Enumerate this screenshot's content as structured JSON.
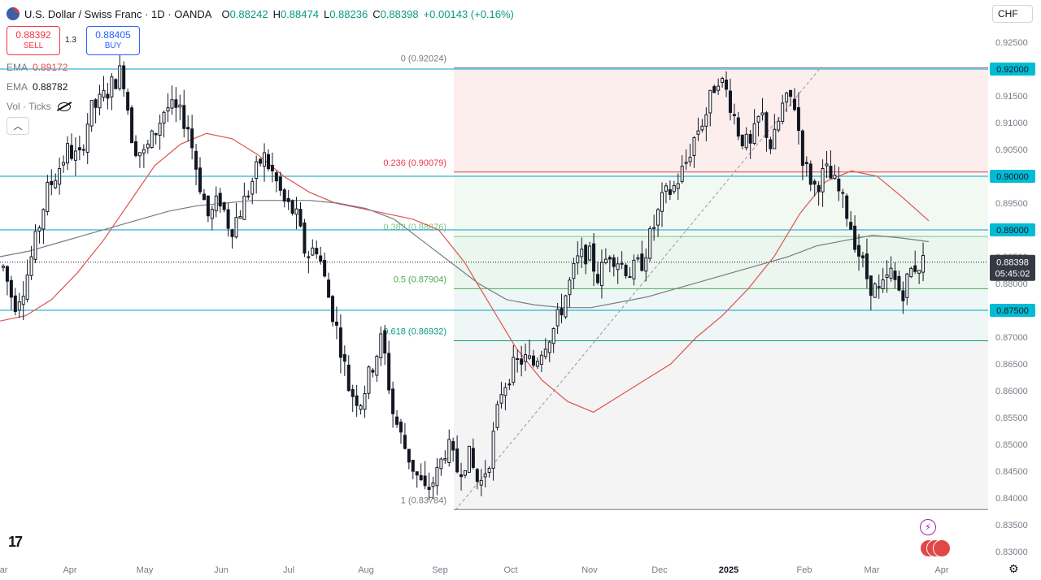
{
  "header": {
    "symbol": "U.S. Dollar / Swiss Franc · 1D · OANDA",
    "o_label": "O",
    "o_value": "0.88242",
    "h_label": "H",
    "h_value": "0.88474",
    "l_label": "L",
    "l_value": "0.88236",
    "c_label": "C",
    "c_value": "0.88398",
    "change": "+0.00143 (+0.16%)"
  },
  "trade": {
    "sell_price": "0.88392",
    "sell_label": "SELL",
    "spread": "1.3",
    "buy_price": "0.88405",
    "buy_label": "BUY"
  },
  "indicators": [
    {
      "name": "EMA",
      "value": "0.89172"
    },
    {
      "name": "EMA",
      "value": "0.88782"
    },
    {
      "name": "Vol · Ticks",
      "value": ""
    }
  ],
  "currency": "CHF",
  "colors": {
    "up": "#089981",
    "down": "#f23645",
    "candle": "#131722",
    "ema_fast": "#e0524f",
    "ema_slow": "#787b86",
    "level_line": "#00a2c8",
    "accent": "#2962ff"
  },
  "icons": [
    "tradingview-logo-icon",
    "lightning-icon",
    "flags-icon",
    "settings-icon",
    "eye-slash-icon",
    "chevron-up-icon"
  ],
  "chart_data": {
    "type": "candlestick",
    "yaxis_ticks": [
      "0.92500",
      "0.91500",
      "0.91000",
      "0.90500",
      "0.89500",
      "0.88500",
      "0.88000",
      "0.87000",
      "0.86500",
      "0.86000",
      "0.85500",
      "0.85000",
      "0.84500",
      "0.84000",
      "0.83500",
      "0.83000"
    ],
    "xaxis_ticks": [
      "Mar",
      "Apr",
      "May",
      "Jun",
      "Jul",
      "Aug",
      "Sep",
      "Oct",
      "Nov",
      "Dec",
      "2025",
      "Feb",
      "Mar",
      "Apr"
    ],
    "ylim": [
      0.83,
      0.925
    ],
    "horizontal_levels": [
      {
        "value": 0.92,
        "label": "0.92000"
      },
      {
        "value": 0.9,
        "label": "0.90000"
      },
      {
        "value": 0.89,
        "label": "0.89000"
      },
      {
        "value": 0.875,
        "label": "0.87500"
      }
    ],
    "last_price": {
      "value": 0.88398,
      "label": "0.88398",
      "countdown": "05:45:02"
    },
    "fibonacci": [
      {
        "level": "0",
        "value": 0.92024,
        "text": "0 (0.92024)",
        "color": "#787b86"
      },
      {
        "level": "0.236",
        "value": 0.90079,
        "text": "0.236 (0.90079)",
        "color": "#f23645"
      },
      {
        "level": "0.382",
        "value": 0.88876,
        "text": "0.382 (0.88876)",
        "color": "#81c784"
      },
      {
        "level": "0.5",
        "value": 0.87904,
        "text": "0.5 (0.87904)",
        "color": "#4caf50"
      },
      {
        "level": "0.618",
        "value": 0.86932,
        "text": "0.618 (0.86932)",
        "color": "#089981"
      },
      {
        "level": "1",
        "value": 0.83784,
        "text": "1 (0.83784)",
        "color": "#787b86"
      }
    ],
    "series": [
      {
        "name": "EMA",
        "values": [
          0.873,
          0.874,
          0.877,
          0.882,
          0.888,
          0.895,
          0.902,
          0.906,
          0.908,
          0.907,
          0.904,
          0.9,
          0.897,
          0.895,
          0.894,
          0.893,
          0.892,
          0.89,
          0.884,
          0.876,
          0.868,
          0.862,
          0.858,
          0.856,
          0.859,
          0.862,
          0.865,
          0.87,
          0.874,
          0.879,
          0.885,
          0.893,
          0.899,
          0.901,
          0.9,
          0.896,
          0.8917
        ]
      },
      {
        "name": "EMA",
        "values": [
          0.885,
          0.886,
          0.8875,
          0.889,
          0.8905,
          0.892,
          0.8935,
          0.8945,
          0.895,
          0.8955,
          0.8955,
          0.8955,
          0.895,
          0.894,
          0.892,
          0.888,
          0.884,
          0.88,
          0.877,
          0.876,
          0.8755,
          0.8755,
          0.8765,
          0.8775,
          0.879,
          0.8805,
          0.882,
          0.8835,
          0.885,
          0.887,
          0.888,
          0.889,
          0.8885,
          0.8878
        ]
      }
    ],
    "close_path": [
      0.883,
      0.876,
      0.88,
      0.888,
      0.897,
      0.901,
      0.905,
      0.903,
      0.912,
      0.914,
      0.917,
      0.92,
      0.906,
      0.904,
      0.908,
      0.913,
      0.912,
      0.91,
      0.9,
      0.892,
      0.896,
      0.89,
      0.894,
      0.899,
      0.904,
      0.9,
      0.895,
      0.893,
      0.885,
      0.887,
      0.878,
      0.87,
      0.86,
      0.858,
      0.864,
      0.87,
      0.856,
      0.85,
      0.845,
      0.841,
      0.844,
      0.85,
      0.845,
      0.848,
      0.842,
      0.848,
      0.86,
      0.864,
      0.866,
      0.865,
      0.869,
      0.872,
      0.878,
      0.884,
      0.886,
      0.881,
      0.886,
      0.884,
      0.882,
      0.884,
      0.89,
      0.896,
      0.898,
      0.902,
      0.908,
      0.912,
      0.919,
      0.915,
      0.908,
      0.905,
      0.912,
      0.905,
      0.913,
      0.915,
      0.902,
      0.898,
      0.901,
      0.898,
      0.893,
      0.886,
      0.88,
      0.878,
      0.882,
      0.878,
      0.883,
      0.884
    ]
  }
}
